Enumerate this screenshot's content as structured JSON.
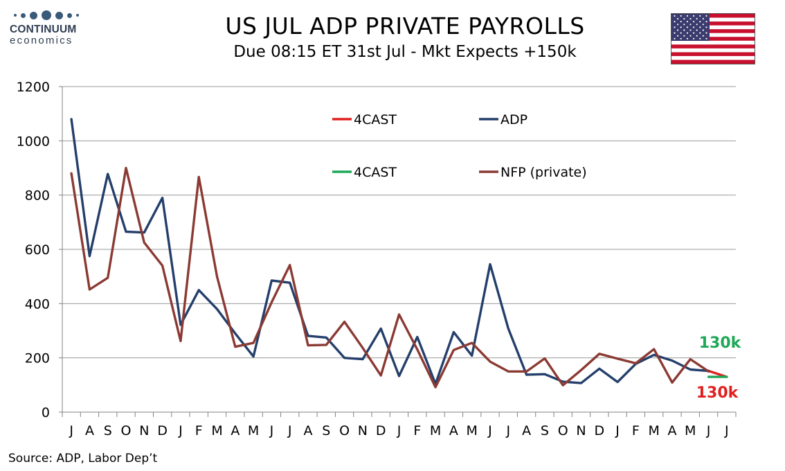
{
  "logo": {
    "name": "CONTINUUM",
    "sub": "economics"
  },
  "header": {
    "title": "US JUL ADP PRIVATE PAYROLLS",
    "subtitle": "Due 08:15 ET 31st Jul - Mkt Expects +150k"
  },
  "footer": {
    "source": "Source: ADP, Labor Dep’t"
  },
  "colors": {
    "adp": "#243f6b",
    "nfp": "#8b3a33",
    "forecast_adp": "#e02020",
    "forecast_nfp": "#1fa858",
    "grid": "#9a9a9a",
    "flag_red": "#c8102e",
    "flag_blue": "#3c3b6e"
  },
  "chart_data": {
    "type": "line",
    "categories": [
      "J",
      "A",
      "S",
      "O",
      "N",
      "D",
      "J",
      "F",
      "M",
      "A",
      "M",
      "J",
      "J",
      "A",
      "S",
      "O",
      "N",
      "D",
      "J",
      "F",
      "M",
      "A",
      "M",
      "J",
      "J",
      "A",
      "S",
      "O",
      "N",
      "D",
      "J",
      "F",
      "M",
      "A",
      "M",
      "J",
      "J"
    ],
    "ylim": [
      0,
      1200
    ],
    "yticks": [
      0,
      200,
      400,
      600,
      800,
      1000,
      1200
    ],
    "grid": true,
    "legend_position": "top-center",
    "series": [
      {
        "name": "ADP",
        "values": [
          1080,
          575,
          878,
          665,
          662,
          790,
          322,
          450,
          380,
          290,
          205,
          485,
          477,
          281,
          275,
          200,
          195,
          308,
          133,
          277,
          104,
          295,
          208,
          545,
          308,
          138,
          140,
          112,
          107,
          160,
          111,
          178,
          211,
          190,
          157,
          152,
          null
        ]
      },
      {
        "name": "NFP (private)",
        "values": [
          880,
          452,
          495,
          900,
          625,
          540,
          262,
          867,
          500,
          241,
          255,
          405,
          542,
          246,
          248,
          333,
          237,
          135,
          360,
          231,
          92,
          229,
          255,
          186,
          150,
          150,
          198,
          99,
          155,
          215,
          197,
          180,
          232,
          109,
          195,
          150,
          null
        ]
      },
      {
        "name": "4CAST",
        "values": [
          null,
          null,
          null,
          null,
          null,
          null,
          null,
          null,
          null,
          null,
          null,
          null,
          null,
          null,
          null,
          null,
          null,
          null,
          null,
          null,
          null,
          null,
          null,
          null,
          null,
          null,
          null,
          null,
          null,
          null,
          null,
          null,
          null,
          null,
          null,
          152,
          130
        ]
      },
      {
        "name": "4CAST",
        "values": [
          null,
          null,
          null,
          null,
          null,
          null,
          null,
          null,
          null,
          null,
          null,
          null,
          null,
          null,
          null,
          null,
          null,
          null,
          null,
          null,
          null,
          null,
          null,
          null,
          null,
          null,
          null,
          null,
          null,
          null,
          null,
          null,
          null,
          null,
          null,
          130,
          130
        ]
      }
    ],
    "annotations": [
      {
        "text": "130k",
        "color": "#1fa858",
        "y": 130
      },
      {
        "text": "130k",
        "color": "#e02020",
        "y": 130
      }
    ]
  }
}
